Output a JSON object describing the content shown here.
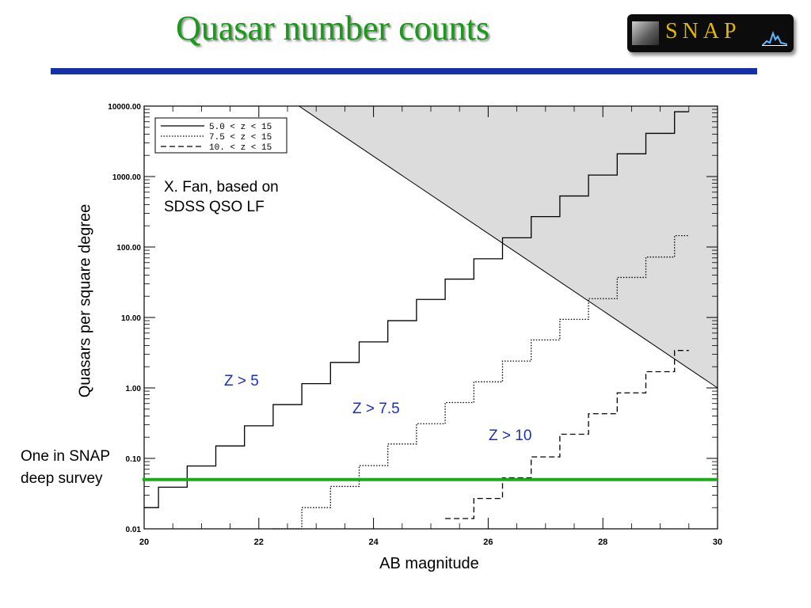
{
  "slide": {
    "title": "Quasar number counts",
    "logo_text": "SNAP"
  },
  "annotations": {
    "source_line1": "X. Fan, based on",
    "source_line2": "SDSS QSO LF",
    "z5": "Z > 5",
    "z75": "Z > 7.5",
    "z10": "Z > 10",
    "snap_line1": "One in SNAP",
    "snap_line2": "deep survey"
  },
  "colors": {
    "title": "#1a9a1a",
    "rule": "#1530a8",
    "snap_line": "#1aaa1a",
    "z_labels": "#1a2fc8",
    "shade": "#dcdcdc"
  },
  "chart_data": {
    "type": "line",
    "step": true,
    "xlabel": "AB magnitude",
    "ylabel": "Quasars per square degree",
    "xlim": [
      20,
      30
    ],
    "ylim": [
      0.01,
      10000
    ],
    "yscale": "log",
    "x_ticks": [
      "20",
      "22",
      "24",
      "26",
      "28",
      "30"
    ],
    "y_ticks": [
      "0.01",
      "0.10",
      "1.00",
      "10.00",
      "100.00",
      "1000.00",
      "10000.00"
    ],
    "legend_position": "top-left",
    "series": [
      {
        "name": "5.0 < z < 15",
        "style": "solid",
        "x": [
          20.0,
          20.25,
          20.75,
          21.25,
          21.75,
          22.25,
          22.75,
          23.25,
          23.75,
          24.25,
          24.75,
          25.25,
          25.75,
          26.25,
          26.75,
          27.25,
          27.75,
          28.25,
          28.75,
          29.25,
          29.5
        ],
        "y": [
          0.02,
          0.039,
          0.078,
          0.15,
          0.29,
          0.58,
          1.15,
          2.3,
          4.5,
          9.0,
          18,
          35,
          68,
          135,
          270,
          530,
          1050,
          2100,
          4100,
          8300,
          8300
        ]
      },
      {
        "name": "7.5 < z < 15",
        "style": "dotted",
        "x": [
          22.25,
          22.75,
          23.25,
          23.75,
          24.25,
          24.75,
          25.25,
          25.75,
          26.25,
          26.75,
          27.25,
          27.75,
          28.25,
          28.75,
          29.25,
          29.5
        ],
        "y": [
          0.01,
          0.02,
          0.04,
          0.079,
          0.16,
          0.31,
          0.62,
          1.22,
          2.4,
          4.8,
          9.4,
          18.5,
          37,
          72,
          145,
          145
        ]
      },
      {
        "name": "10. < z < 15",
        "style": "dashed",
        "x": [
          25.25,
          25.75,
          26.25,
          26.75,
          27.25,
          27.75,
          28.25,
          28.75,
          29.25,
          29.5
        ],
        "y": [
          0.014,
          0.027,
          0.053,
          0.105,
          0.22,
          0.43,
          0.85,
          1.7,
          3.4,
          3.4
        ]
      }
    ],
    "shaded_region": {
      "description": "above diagonal line",
      "line": [
        [
          22.7,
          10000
        ],
        [
          30,
          1.0
        ]
      ]
    },
    "hline": {
      "y": 0.05,
      "label": "One in SNAP deep survey"
    },
    "grid": false
  }
}
